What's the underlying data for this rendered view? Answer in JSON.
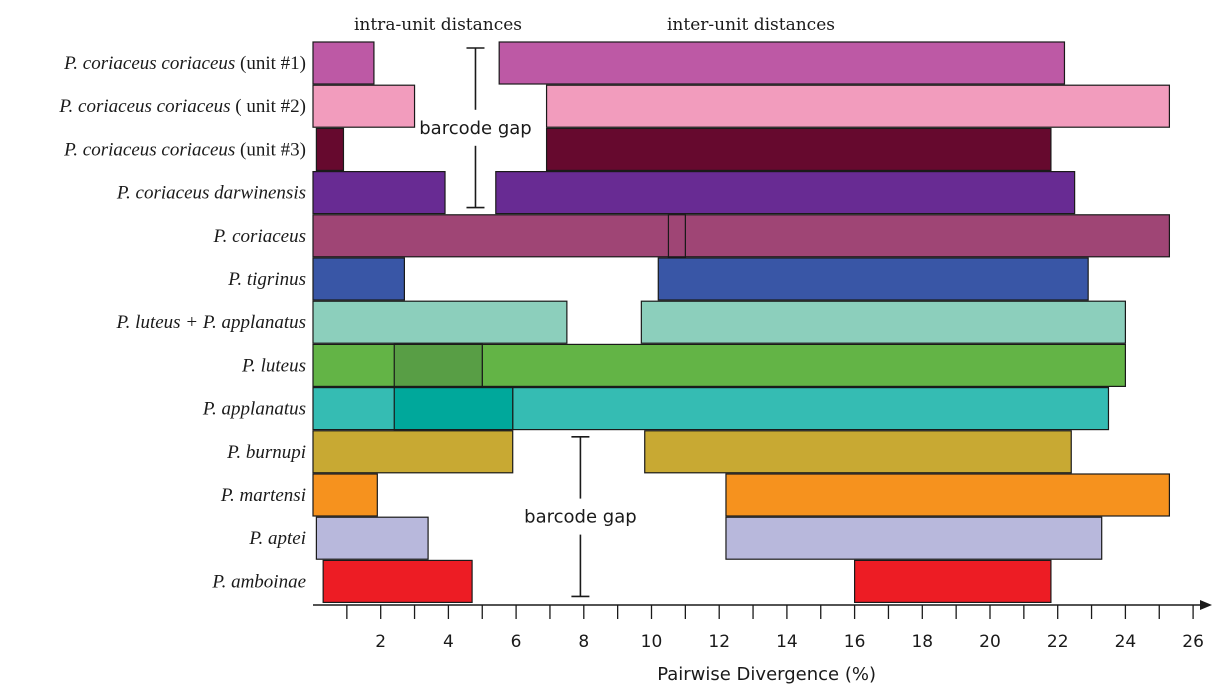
{
  "chart_data": {
    "type": "bar",
    "subtype": "horizontal-range",
    "headers": {
      "intra": "intra-unit distances",
      "inter": "inter-unit distances"
    },
    "xlabel": "Pairwise Divergence (%)",
    "xlim": [
      0,
      26.7
    ],
    "xticks": [
      2,
      4,
      6,
      8,
      10,
      12,
      14,
      16,
      18,
      20,
      22,
      24,
      26
    ],
    "minor_ticks": [
      1,
      3,
      5,
      7,
      9,
      11,
      13,
      15,
      17,
      19,
      21,
      23,
      25
    ],
    "categories": [
      {
        "italic": "P. coriaceus coriaceus",
        "suffix": " (unit #1)",
        "color": "#bd59a5",
        "intra": [
          0,
          1.8
        ],
        "inter": [
          5.5,
          22.2
        ]
      },
      {
        "italic": "P. coriaceus coriaceus",
        "suffix": " ( unit #2)",
        "color": "#f29cbd",
        "intra": [
          0,
          3.0
        ],
        "inter": [
          6.9,
          25.3
        ]
      },
      {
        "italic": "P. coriaceus coriaceus",
        "suffix": " (unit #3)",
        "color": "#66092e",
        "intra": [
          0.1,
          0.9
        ],
        "inter": [
          6.9,
          21.8
        ]
      },
      {
        "italic": "P. coriaceus darwinensis",
        "suffix": "",
        "color": "#682b93",
        "intra": [
          0,
          3.9
        ],
        "inter": [
          5.4,
          22.5
        ]
      },
      {
        "italic": "P. coriaceus",
        "suffix": "",
        "color": "#9f4575",
        "intra": [
          0,
          11.0
        ],
        "inter": [
          10.5,
          25.3
        ]
      },
      {
        "italic": "P. tigrinus",
        "suffix": "",
        "color": "#3956a6",
        "intra": [
          0,
          2.7
        ],
        "inter": [
          10.2,
          22.9
        ]
      },
      {
        "italic": "P. luteus + P. applanatus",
        "suffix": "",
        "color": "#8ccfbc",
        "intra": [
          0,
          7.5
        ],
        "inter": [
          9.7,
          24.0
        ]
      },
      {
        "italic": "P. luteus",
        "suffix": "",
        "color": "#63b446",
        "overlap_color": "#589e45",
        "intra": [
          0,
          5.0
        ],
        "inter": [
          2.4,
          24.0
        ]
      },
      {
        "italic": "P. applanatus",
        "suffix": "",
        "color": "#35bcb3",
        "overlap_color": "#00a89b",
        "intra": [
          0,
          5.9
        ],
        "inter": [
          2.4,
          23.5
        ]
      },
      {
        "italic": "P. burnupi",
        "suffix": "",
        "color": "#c8a933",
        "intra": [
          0,
          5.9
        ],
        "inter": [
          9.8,
          22.4
        ]
      },
      {
        "italic": "P. martensi",
        "suffix": "",
        "color": "#f6921e",
        "intra": [
          0,
          1.9
        ],
        "inter": [
          12.2,
          25.3
        ]
      },
      {
        "italic": "P. aptei",
        "suffix": "",
        "color": "#b8b8dc",
        "intra": [
          0.1,
          3.4
        ],
        "inter": [
          12.2,
          23.3
        ]
      },
      {
        "italic": "P. amboinae",
        "suffix": "",
        "color": "#ed1c24",
        "intra": [
          0.3,
          4.7
        ],
        "inter": [
          16.0,
          21.8
        ]
      }
    ],
    "annotations": [
      {
        "text": "barcode gap",
        "x_value": 4.8,
        "row_start": 0,
        "row_end": 3
      },
      {
        "text": "barcode gap",
        "x_value": 7.9,
        "row_start": 9,
        "row_end": 12
      }
    ]
  }
}
